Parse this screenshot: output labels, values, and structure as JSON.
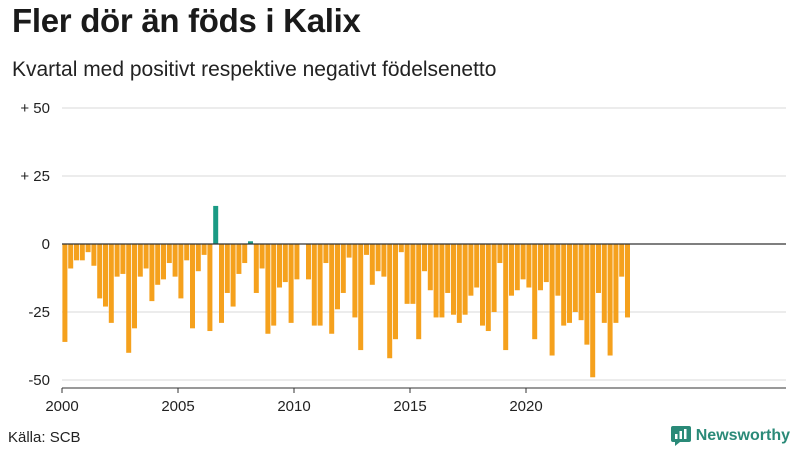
{
  "title": "Fler dör än föds i Kalix",
  "subtitle": "Kvartal med positivt respektive negativt födelsenetto",
  "source": "Källa: SCB",
  "brand": {
    "name": "Newsworthy",
    "icon": "newsworthy-logo-icon"
  },
  "colors": {
    "negative": "#f5a11d",
    "positive": "#1a9a84",
    "grid": "#d9d9d9",
    "axis": "#333333"
  },
  "chart_data": {
    "type": "bar",
    "title": "Fler dör än föds i Kalix",
    "subtitle": "Kvartal med positivt respektive negativt födelsenetto",
    "x_ticks": [
      "2000",
      "2005",
      "2010",
      "2015",
      "2020"
    ],
    "y_ticks": [
      "+ 50",
      "+ 25",
      "0",
      "-25",
      "-50"
    ],
    "y_tick_values": [
      50,
      25,
      0,
      -25,
      -50
    ],
    "ylim": [
      -50,
      50
    ],
    "start_year": 2000,
    "periods_per_year": 4,
    "grid": true,
    "values": [
      -36,
      -9,
      -6,
      -6,
      -3,
      -8,
      -20,
      -23,
      -29,
      -12,
      -11,
      -40,
      -31,
      -12,
      -9,
      -21,
      -15,
      -13,
      -7,
      -12,
      -20,
      -6,
      -31,
      -10,
      -4,
      -32,
      14,
      -29,
      -18,
      -23,
      -11,
      -7,
      1,
      -18,
      -9,
      -33,
      -30,
      -16,
      -14,
      -29,
      -13,
      0,
      -13,
      -30,
      -30,
      -7,
      -33,
      -24,
      -18,
      -5,
      -27,
      -39,
      -4,
      -15,
      -10,
      -12,
      -42,
      -35,
      -3,
      -22,
      -22,
      -35,
      -10,
      -17,
      -27,
      -27,
      -18,
      -26,
      -29,
      -26,
      -19,
      -16,
      -30,
      -32,
      -25,
      -7,
      -39,
      -19,
      -17,
      -13,
      -16,
      -35,
      -17,
      -14,
      -41,
      -19,
      -30,
      -29,
      -25,
      -28,
      -37,
      -49,
      -18,
      -29,
      -41,
      -29,
      -12,
      -27
    ]
  }
}
